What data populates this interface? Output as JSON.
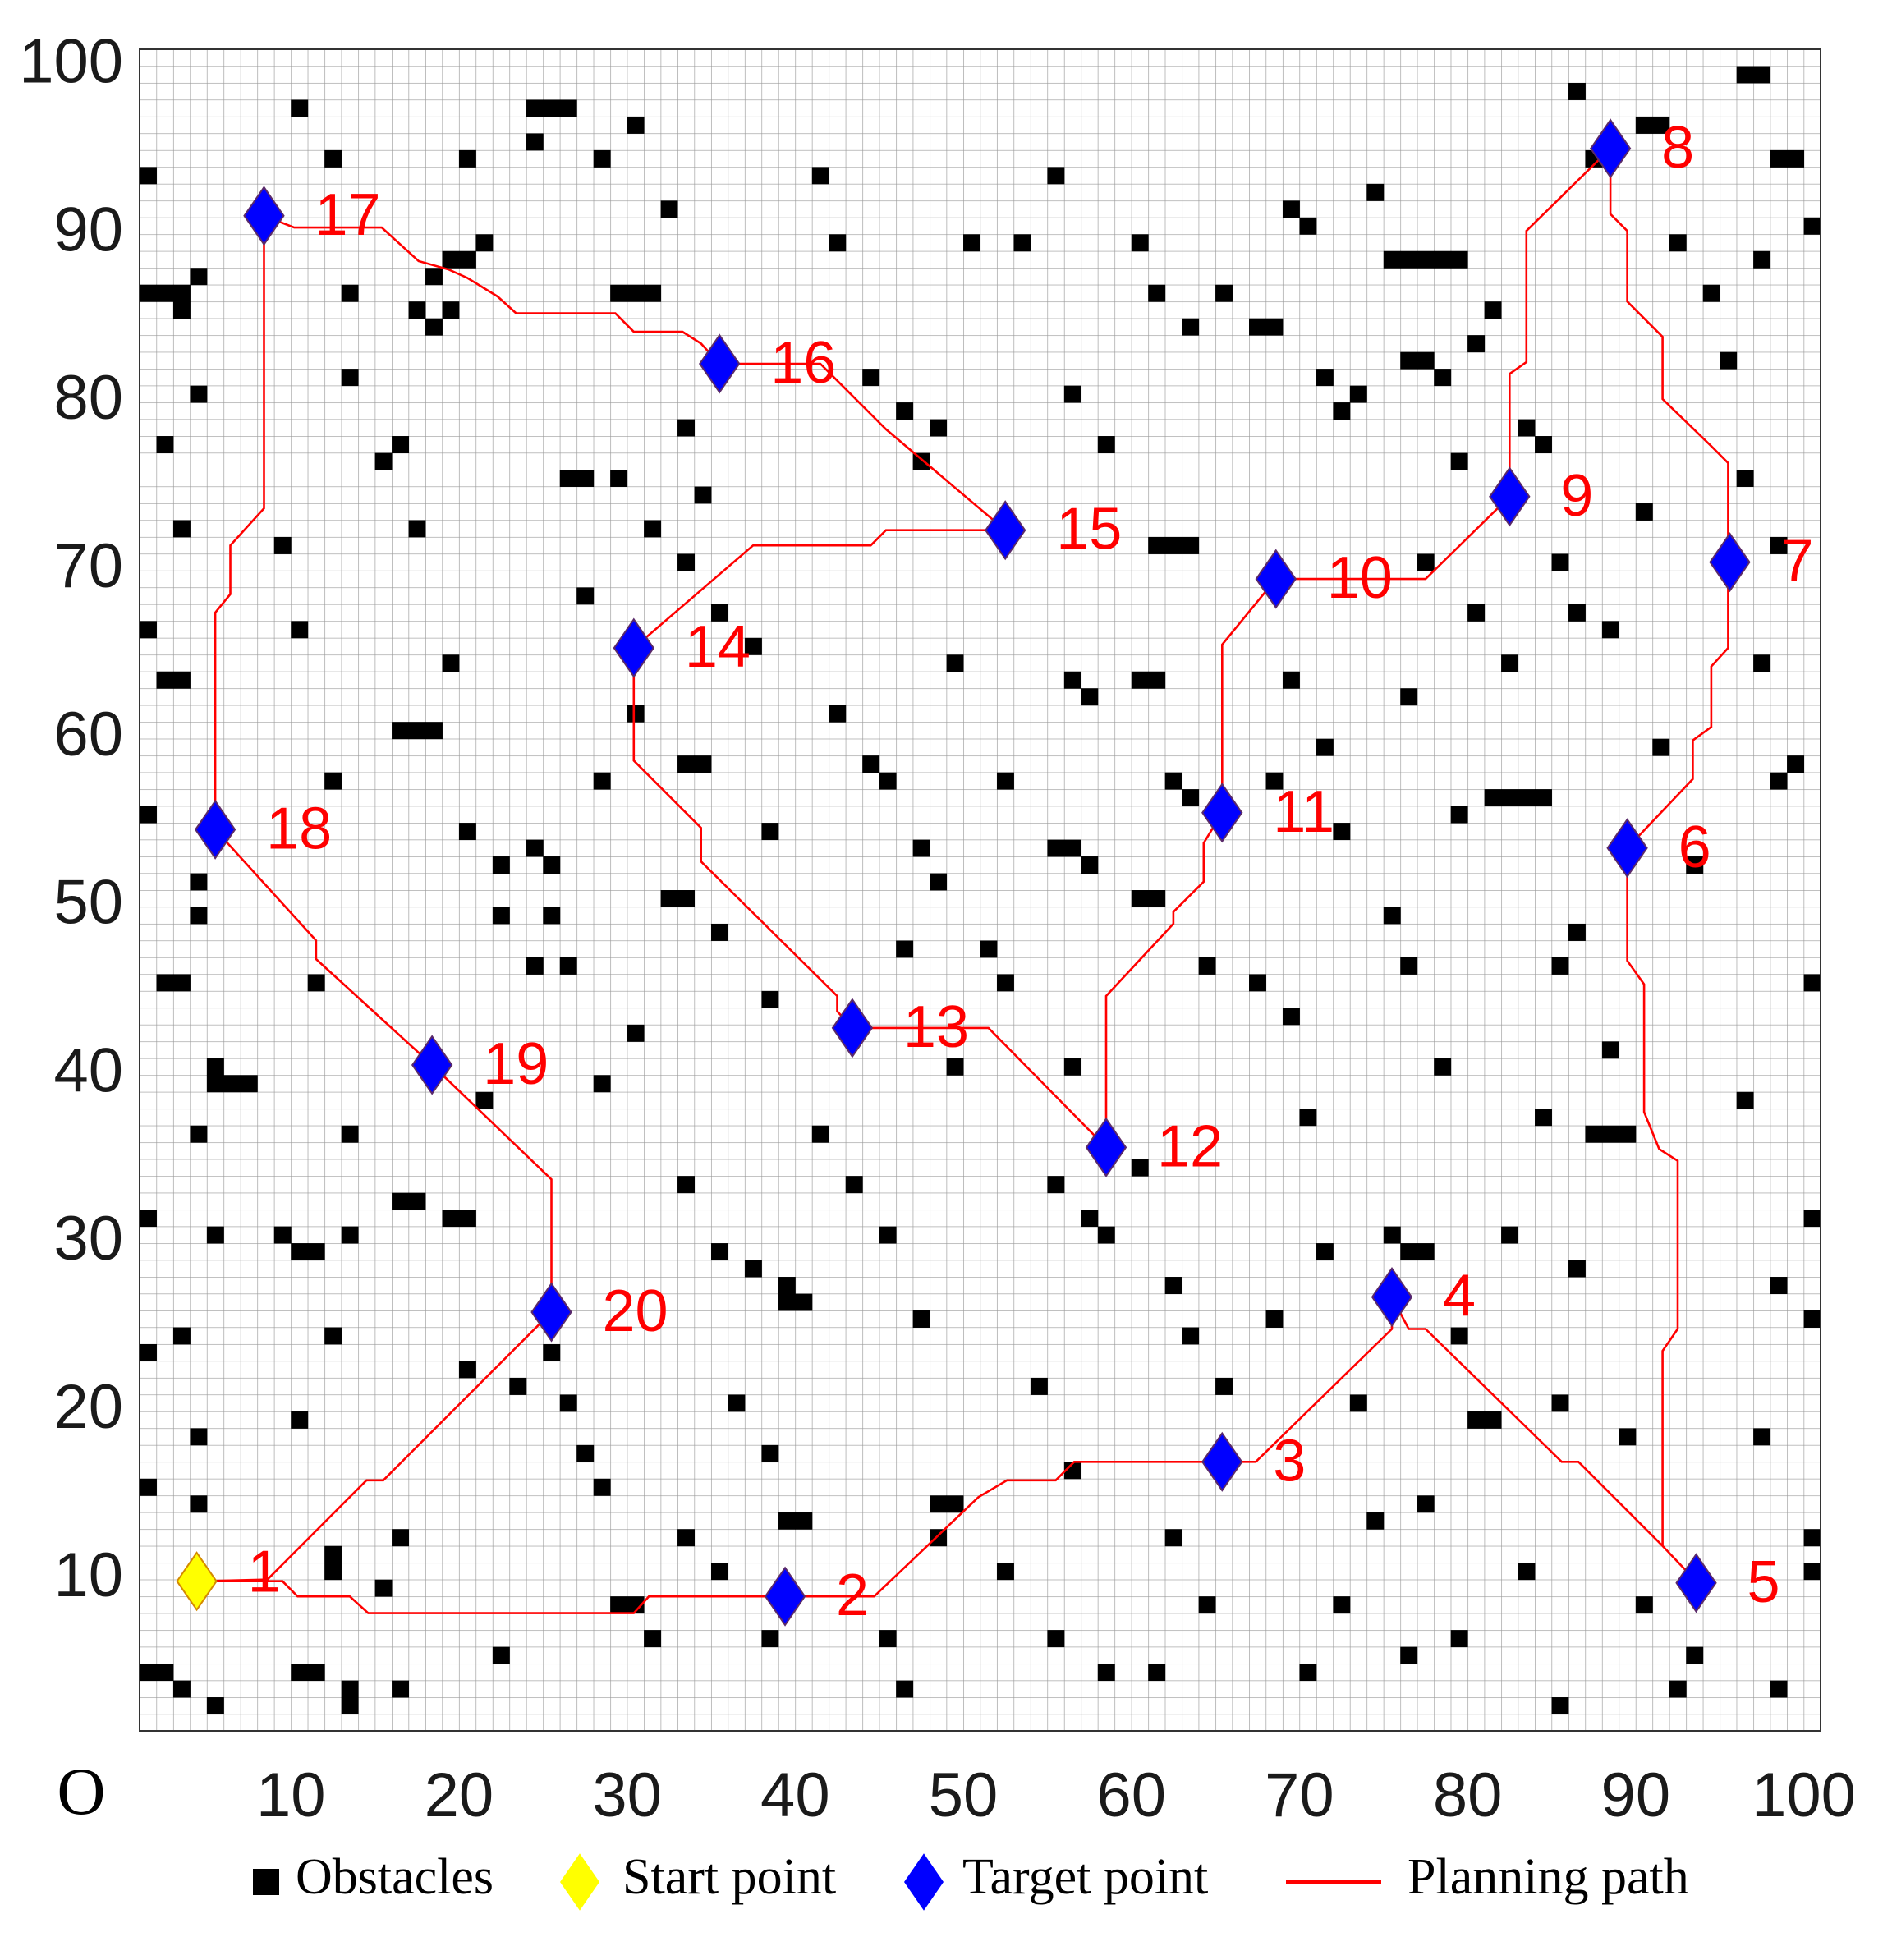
{
  "chart_data": {
    "type": "grid-path",
    "xlim": [
      1,
      101
    ],
    "ylim": [
      1,
      101
    ],
    "xticks": [
      10,
      20,
      30,
      40,
      50,
      60,
      70,
      80,
      90,
      100
    ],
    "yticks": [
      10,
      20,
      30,
      40,
      50,
      60,
      70,
      80,
      90,
      100
    ],
    "origin_label": "O",
    "grid": true,
    "obstacles": {
      "name": "Obstacles",
      "color": "#000000",
      "cells": [
        [
          1,
          93
        ],
        [
          1,
          86
        ],
        [
          2,
          86
        ],
        [
          3,
          86
        ],
        [
          3,
          85
        ],
        [
          4,
          87
        ],
        [
          4,
          80
        ],
        [
          2,
          77
        ],
        [
          3,
          72
        ],
        [
          1,
          66
        ],
        [
          2,
          63
        ],
        [
          3,
          63
        ],
        [
          1,
          55
        ],
        [
          4,
          51
        ],
        [
          4,
          49
        ],
        [
          2,
          45
        ],
        [
          3,
          45
        ],
        [
          5,
          40
        ],
        [
          5,
          39
        ],
        [
          6,
          39
        ],
        [
          7,
          39
        ],
        [
          4,
          36
        ],
        [
          1,
          31
        ],
        [
          5,
          30
        ],
        [
          3,
          24
        ],
        [
          1,
          23
        ],
        [
          4,
          18
        ],
        [
          1,
          15
        ],
        [
          4,
          14
        ],
        [
          1,
          4
        ],
        [
          2,
          4
        ],
        [
          3,
          3
        ],
        [
          5,
          2
        ],
        [
          10,
          97
        ],
        [
          12,
          94
        ],
        [
          13,
          86
        ],
        [
          13,
          81
        ],
        [
          9,
          71
        ],
        [
          10,
          66
        ],
        [
          12,
          57
        ],
        [
          11,
          45
        ],
        [
          13,
          36
        ],
        [
          13,
          30
        ],
        [
          9,
          30
        ],
        [
          10,
          29
        ],
        [
          11,
          29
        ],
        [
          12,
          24
        ],
        [
          10,
          19
        ],
        [
          12,
          10
        ],
        [
          12,
          11
        ],
        [
          11,
          4
        ],
        [
          10,
          4
        ],
        [
          13,
          2
        ],
        [
          13,
          3
        ],
        [
          16,
          3
        ],
        [
          15,
          9
        ],
        [
          16,
          12
        ],
        [
          17,
          85
        ],
        [
          18,
          84
        ],
        [
          19,
          85
        ],
        [
          18,
          87
        ],
        [
          19,
          88
        ],
        [
          20,
          88
        ],
        [
          21,
          89
        ],
        [
          15,
          76
        ],
        [
          16,
          77
        ],
        [
          17,
          72
        ],
        [
          19,
          64
        ],
        [
          16,
          60
        ],
        [
          17,
          60
        ],
        [
          18,
          60
        ],
        [
          20,
          54
        ],
        [
          22,
          52
        ],
        [
          24,
          53
        ],
        [
          25,
          52
        ],
        [
          22,
          49
        ],
        [
          25,
          49
        ],
        [
          24,
          46
        ],
        [
          21,
          38
        ],
        [
          16,
          32
        ],
        [
          17,
          32
        ],
        [
          19,
          31
        ],
        [
          20,
          22
        ],
        [
          23,
          21
        ],
        [
          25,
          23
        ],
        [
          26,
          20
        ],
        [
          27,
          17
        ],
        [
          28,
          15
        ],
        [
          29,
          8
        ],
        [
          30,
          8
        ],
        [
          31,
          6
        ],
        [
          22,
          5
        ],
        [
          20,
          31
        ],
        [
          26,
          46
        ],
        [
          28,
          57
        ],
        [
          30,
          61
        ],
        [
          24,
          97
        ],
        [
          25,
          97
        ],
        [
          26,
          97
        ],
        [
          30,
          96
        ],
        [
          28,
          94
        ],
        [
          24,
          95
        ],
        [
          20,
          94
        ],
        [
          32,
          91
        ],
        [
          31,
          86
        ],
        [
          30,
          86
        ],
        [
          29,
          86
        ],
        [
          33,
          78
        ],
        [
          34,
          74
        ],
        [
          26,
          75
        ],
        [
          27,
          75
        ],
        [
          29,
          75
        ],
        [
          31,
          72
        ],
        [
          33,
          70
        ],
        [
          27,
          68
        ],
        [
          35,
          67
        ],
        [
          37,
          65
        ],
        [
          34,
          58
        ],
        [
          33,
          58
        ],
        [
          38,
          54
        ],
        [
          32,
          50
        ],
        [
          33,
          50
        ],
        [
          35,
          48
        ],
        [
          38,
          44
        ],
        [
          30,
          42
        ],
        [
          28,
          39
        ],
        [
          33,
          33
        ],
        [
          35,
          29
        ],
        [
          37,
          28
        ],
        [
          39,
          27
        ],
        [
          39,
          26
        ],
        [
          40,
          26
        ],
        [
          36,
          20
        ],
        [
          38,
          17
        ],
        [
          39,
          13
        ],
        [
          40,
          13
        ],
        [
          33,
          12
        ],
        [
          35,
          10
        ],
        [
          38,
          6
        ],
        [
          41,
          93
        ],
        [
          42,
          89
        ],
        [
          44,
          81
        ],
        [
          47,
          76
        ],
        [
          46,
          79
        ],
        [
          48,
          78
        ],
        [
          49,
          64
        ],
        [
          42,
          61
        ],
        [
          44,
          58
        ],
        [
          45,
          57
        ],
        [
          47,
          53
        ],
        [
          48,
          51
        ],
        [
          46,
          47
        ],
        [
          49,
          40
        ],
        [
          41,
          36
        ],
        [
          43,
          33
        ],
        [
          45,
          30
        ],
        [
          47,
          25
        ],
        [
          48,
          14
        ],
        [
          49,
          14
        ],
        [
          48,
          12
        ],
        [
          45,
          6
        ],
        [
          46,
          3
        ],
        [
          50,
          89
        ],
        [
          53,
          89
        ],
        [
          55,
          93
        ],
        [
          56,
          80
        ],
        [
          58,
          77
        ],
        [
          56,
          63
        ],
        [
          57,
          62
        ],
        [
          52,
          57
        ],
        [
          55,
          53
        ],
        [
          56,
          53
        ],
        [
          57,
          52
        ],
        [
          52,
          45
        ],
        [
          51,
          47
        ],
        [
          56,
          40
        ],
        [
          55,
          33
        ],
        [
          57,
          31
        ],
        [
          58,
          30
        ],
        [
          54,
          21
        ],
        [
          56,
          16
        ],
        [
          52,
          10
        ],
        [
          55,
          6
        ],
        [
          58,
          4
        ],
        [
          60,
          89
        ],
        [
          61,
          86
        ],
        [
          63,
          84
        ],
        [
          65,
          86
        ],
        [
          61,
          71
        ],
        [
          62,
          71
        ],
        [
          63,
          71
        ],
        [
          60,
          63
        ],
        [
          61,
          63
        ],
        [
          62,
          57
        ],
        [
          63,
          56
        ],
        [
          60,
          50
        ],
        [
          61,
          50
        ],
        [
          64,
          46
        ],
        [
          60,
          34
        ],
        [
          62,
          27
        ],
        [
          63,
          24
        ],
        [
          65,
          21
        ],
        [
          62,
          12
        ],
        [
          64,
          8
        ],
        [
          61,
          4
        ],
        [
          67,
          84
        ],
        [
          68,
          84
        ],
        [
          69,
          91
        ],
        [
          70,
          90
        ],
        [
          71,
          81
        ],
        [
          72,
          79
        ],
        [
          73,
          80
        ],
        [
          74,
          92
        ],
        [
          69,
          63
        ],
        [
          68,
          57
        ],
        [
          71,
          59
        ],
        [
          72,
          54
        ],
        [
          67,
          45
        ],
        [
          69,
          43
        ],
        [
          70,
          37
        ],
        [
          71,
          29
        ],
        [
          68,
          25
        ],
        [
          73,
          20
        ],
        [
          74,
          13
        ],
        [
          72,
          8
        ],
        [
          70,
          4
        ],
        [
          75,
          88
        ],
        [
          76,
          88
        ],
        [
          77,
          88
        ],
        [
          78,
          88
        ],
        [
          79,
          88
        ],
        [
          76,
          82
        ],
        [
          77,
          82
        ],
        [
          78,
          81
        ],
        [
          80,
          83
        ],
        [
          79,
          76
        ],
        [
          77,
          70
        ],
        [
          80,
          67
        ],
        [
          76,
          62
        ],
        [
          79,
          55
        ],
        [
          75,
          49
        ],
        [
          76,
          46
        ],
        [
          78,
          40
        ],
        [
          75,
          30
        ],
        [
          76,
          29
        ],
        [
          77,
          29
        ],
        [
          79,
          24
        ],
        [
          80,
          19
        ],
        [
          81,
          19
        ],
        [
          77,
          14
        ],
        [
          79,
          6
        ],
        [
          76,
          5
        ],
        [
          81,
          85
        ],
        [
          83,
          78
        ],
        [
          84,
          77
        ],
        [
          85,
          70
        ],
        [
          82,
          64
        ],
        [
          81,
          56
        ],
        [
          82,
          56
        ],
        [
          83,
          56
        ],
        [
          84,
          56
        ],
        [
          85,
          46
        ],
        [
          84,
          37
        ],
        [
          82,
          30
        ],
        [
          85,
          20
        ],
        [
          83,
          10
        ],
        [
          85,
          2
        ],
        [
          86,
          98
        ],
        [
          87,
          94
        ],
        [
          90,
          96
        ],
        [
          91,
          96
        ],
        [
          92,
          89
        ],
        [
          94,
          86
        ],
        [
          95,
          82
        ],
        [
          90,
          73
        ],
        [
          86,
          67
        ],
        [
          88,
          66
        ],
        [
          91,
          59
        ],
        [
          93,
          52
        ],
        [
          86,
          48
        ],
        [
          88,
          41
        ],
        [
          87,
          36
        ],
        [
          88,
          36
        ],
        [
          89,
          36
        ],
        [
          86,
          28
        ],
        [
          89,
          18
        ],
        [
          90,
          8
        ],
        [
          92,
          3
        ],
        [
          93,
          5
        ],
        [
          96,
          99
        ],
        [
          97,
          99
        ],
        [
          98,
          94
        ],
        [
          99,
          94
        ],
        [
          97,
          88
        ],
        [
          100,
          90
        ],
        [
          96,
          75
        ],
        [
          98,
          71
        ],
        [
          97,
          64
        ],
        [
          99,
          58
        ],
        [
          98,
          57
        ],
        [
          100,
          45
        ],
        [
          96,
          38
        ],
        [
          100,
          31
        ],
        [
          98,
          27
        ],
        [
          100,
          25
        ],
        [
          97,
          18
        ],
        [
          100,
          12
        ],
        [
          100,
          10
        ],
        [
          98,
          3
        ]
      ]
    },
    "start": {
      "name": "Start point",
      "color": "#ffff00",
      "x": 4.4,
      "y": 9.9,
      "label": "1"
    },
    "targets": {
      "name": "Target point",
      "color": "#0000ff",
      "label_color": "#ff0000",
      "x": [
        39.4,
        65.4,
        75.5,
        93.6,
        89.5,
        95.6,
        88.5,
        82.5,
        68.6,
        65.4,
        58.5,
        43.4,
        30.4,
        52.5,
        35.5,
        8.4,
        5.5,
        18.4,
        25.5
      ],
      "y": [
        9.0,
        17.0,
        26.8,
        9.8,
        53.5,
        70.5,
        95.1,
        74.4,
        69.5,
        55.6,
        35.7,
        42.8,
        65.4,
        72.4,
        82.3,
        91.1,
        54.6,
        40.6,
        25.9
      ],
      "labels": [
        "2",
        "3",
        "4",
        "5",
        "6",
        "7",
        "8",
        "9",
        "10",
        "11",
        "12",
        "13",
        "14",
        "15",
        "16",
        "17",
        "18",
        "19",
        "20"
      ]
    },
    "path": {
      "name": "Planning path",
      "color": "#ff0000",
      "x": [
        4.4,
        9.5,
        10.4,
        13.5,
        14.6,
        30.4,
        31.3,
        44.7,
        50.9,
        52.6,
        55.5,
        56.6,
        67.4,
        75.5,
        75.5,
        76.5,
        77.5,
        85.6,
        86.6,
        91.6,
        93.6,
        91.6,
        91.6,
        92.5,
        92.5,
        91.4,
        90.5,
        90.5,
        89.5,
        89.5,
        93.4,
        93.4,
        94.5,
        94.5,
        95.5,
        95.5,
        95.5,
        94.5,
        91.6,
        91.6,
        90.5,
        89.5,
        89.5,
        88.5,
        88.5,
        83.5,
        83.5,
        82.5,
        82.5,
        77.5,
        68.6,
        65.4,
        65.4,
        64.3,
        64.3,
        62.5,
        62.5,
        58.5,
        58.5,
        51.5,
        43.4,
        42.5,
        42.5,
        34.4,
        34.4,
        30.4,
        30.4,
        37.5,
        44.5,
        45.4,
        52.5,
        45.4,
        41.5,
        35.5,
        34.4,
        33.3,
        30.4,
        29.3,
        23.4,
        22.3,
        20.5,
        19.4,
        17.6,
        15.4,
        10.2,
        8.4,
        8.4,
        6.4,
        6.4,
        5.5,
        5.5,
        11.5,
        11.5,
        18.4,
        25.5,
        25.5,
        15.5,
        14.5,
        8.6,
        4.4
      ],
      "y": [
        9.9,
        9.9,
        9.0,
        9.0,
        8.0,
        8.0,
        9.0,
        9.0,
        14.9,
        15.9,
        15.9,
        17.0,
        17.0,
        24.9,
        26.8,
        24.9,
        24.9,
        17.0,
        17.0,
        12.0,
        9.9,
        12.0,
        23.6,
        24.9,
        34.9,
        35.6,
        37.8,
        45.4,
        46.8,
        53.5,
        57.6,
        59.9,
        60.7,
        64.3,
        65.4,
        70.5,
        76.4,
        77.4,
        80.2,
        83.9,
        85.0,
        86.0,
        90.2,
        91.2,
        95.1,
        90.2,
        82.4,
        81.7,
        74.4,
        69.5,
        69.5,
        65.6,
        55.6,
        53.8,
        51.5,
        49.7,
        49.0,
        44.7,
        35.7,
        42.8,
        42.8,
        43.8,
        44.7,
        52.7,
        54.7,
        58.7,
        65.4,
        71.5,
        71.5,
        72.4,
        72.4,
        78.4,
        82.3,
        82.3,
        83.5,
        84.2,
        84.2,
        85.3,
        85.3,
        86.3,
        87.4,
        87.9,
        88.4,
        90.4,
        90.4,
        91.1,
        73.7,
        71.5,
        68.6,
        67.5,
        54.6,
        48.0,
        46.9,
        40.6,
        33.8,
        25.9,
        15.9,
        15.9,
        10.0,
        9.9
      ]
    }
  }
}
